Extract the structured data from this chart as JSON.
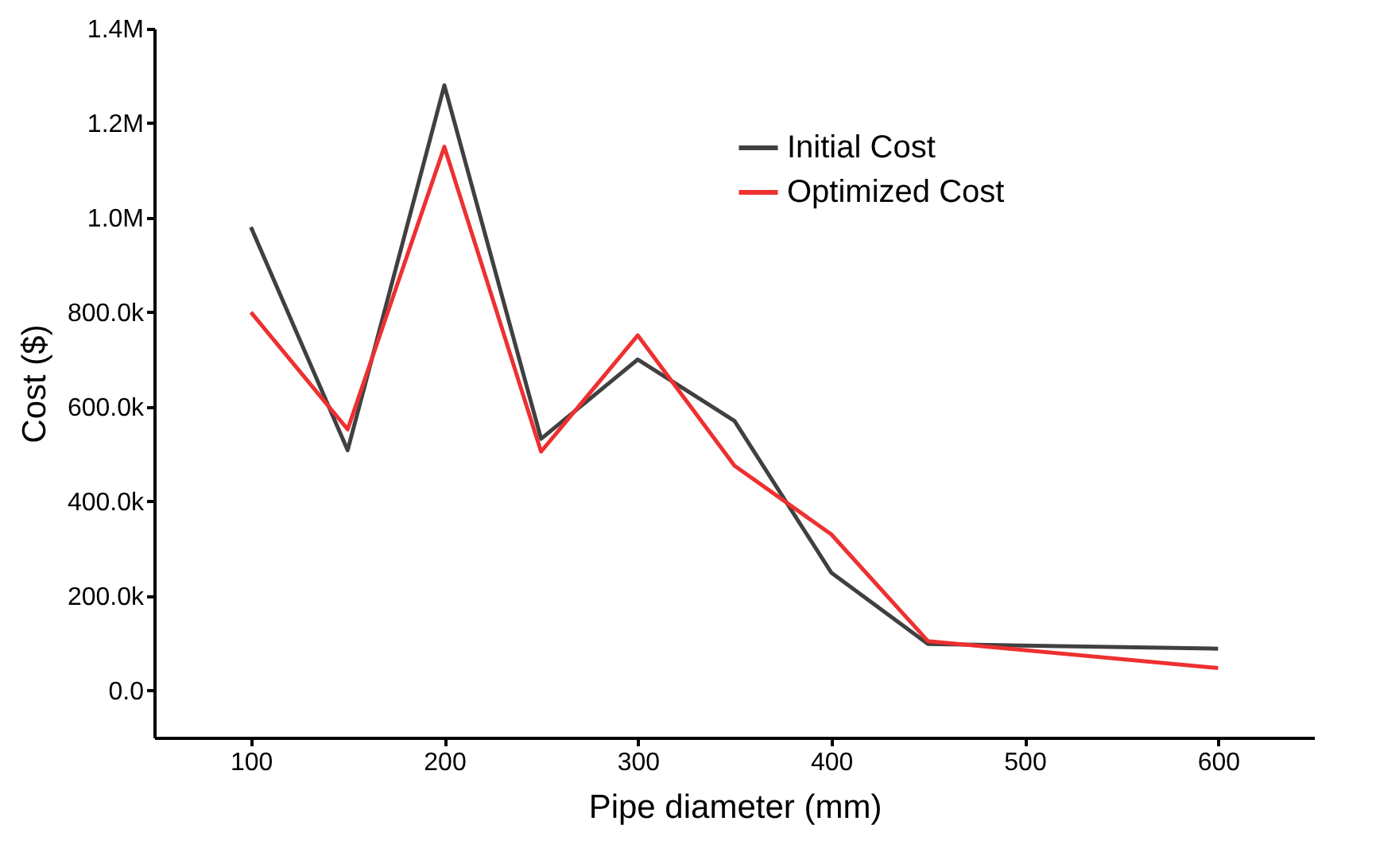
{
  "chart_data": {
    "type": "line",
    "xlabel": "Pipe diameter (mm)",
    "ylabel": "Cost ($)",
    "x": [
      100,
      150,
      200,
      250,
      300,
      350,
      400,
      450,
      600
    ],
    "series": [
      {
        "name": "Initial Cost",
        "color": "#404040",
        "values": [
          980000,
          508000,
          1280000,
          532000,
          700000,
          570000,
          249000,
          98000,
          88000
        ]
      },
      {
        "name": "Optimized Cost",
        "color": "#ee3030",
        "values": [
          800000,
          552000,
          1150000,
          505000,
          751000,
          475000,
          330000,
          104000,
          47000
        ]
      }
    ],
    "xlim": [
      50,
      650
    ],
    "ylim": [
      -100000,
      1400000
    ],
    "xticks": [
      100,
      200,
      300,
      400,
      500,
      600
    ],
    "yticks": [
      {
        "value": 0,
        "label": "0.0"
      },
      {
        "value": 200000,
        "label": "200.0k"
      },
      {
        "value": 400000,
        "label": "400.0k"
      },
      {
        "value": 600000,
        "label": "600.0k"
      },
      {
        "value": 800000,
        "label": "800.0k"
      },
      {
        "value": 1000000,
        "label": "1.0M"
      },
      {
        "value": 1200000,
        "label": "1.2M"
      },
      {
        "value": 1400000,
        "label": "1.4M"
      }
    ],
    "legend": "top right"
  }
}
